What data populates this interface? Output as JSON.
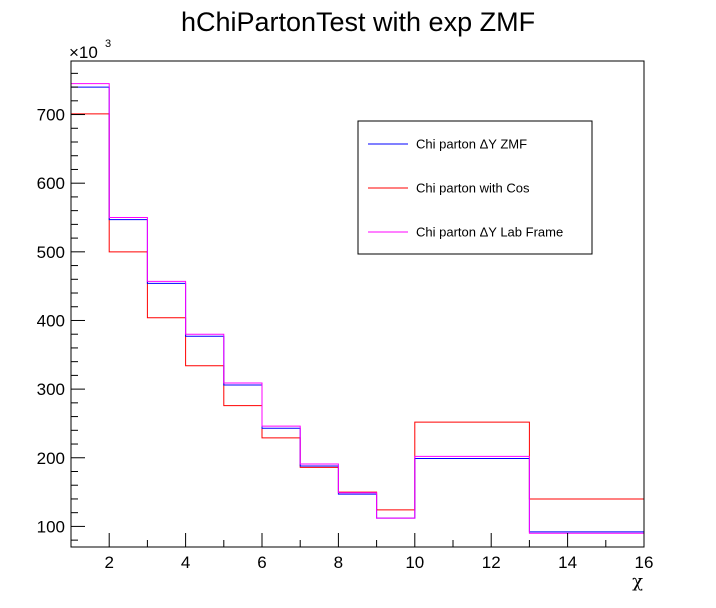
{
  "chart_data": {
    "type": "step",
    "title": "hChiPartonTest with exp ZMF",
    "xlabel": "χ",
    "ylabel": "",
    "y_multiplier": {
      "base": "×10",
      "exponent": "3"
    },
    "xlim": [
      1,
      16
    ],
    "ylim": [
      70,
      778
    ],
    "x_ticks": [
      2,
      4,
      6,
      8,
      10,
      12,
      14,
      16
    ],
    "y_ticks": [
      100,
      200,
      300,
      400,
      500,
      600,
      700
    ],
    "bin_edges": [
      1,
      2,
      3,
      4,
      5,
      6,
      7,
      8,
      9,
      10,
      13,
      16
    ],
    "series": [
      {
        "name": "Chi parton ΔY ZMF",
        "color": "#0000ff",
        "values": [
          740,
          547,
          454,
          377,
          306,
          243,
          188,
          147,
          112,
          199,
          92
        ]
      },
      {
        "name": "Chi parton with Cos",
        "color": "#ff0000",
        "values": [
          701,
          500,
          404,
          334,
          276,
          229,
          186,
          150,
          124,
          252,
          140
        ]
      },
      {
        "name": "Chi parton ΔY Lab Frame",
        "color": "#ff00ff",
        "values": [
          745,
          550,
          457,
          380,
          309,
          246,
          191,
          149,
          112,
          202,
          90
        ]
      }
    ],
    "legend_position": "upper-right",
    "grid": false
  }
}
